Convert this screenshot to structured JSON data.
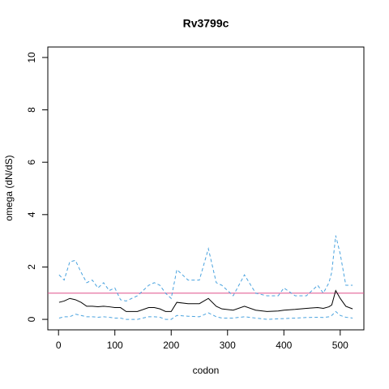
{
  "chart_data": {
    "type": "line",
    "title": "Rv3799c",
    "x_label": "codon",
    "y_label": "omega (dN/dS)",
    "x": [
      1,
      10,
      20,
      30,
      40,
      50,
      60,
      70,
      80,
      90,
      100,
      110,
      120,
      140,
      160,
      170,
      180,
      190,
      200,
      210,
      230,
      250,
      266,
      280,
      290,
      310,
      330,
      350,
      370,
      390,
      400,
      420,
      440,
      460,
      470,
      480,
      485,
      492,
      500,
      510,
      522
    ],
    "series": [
      {
        "color": "#4aa3df",
        "dashed": true,
        "values": [
          1.7,
          1.5,
          2.2,
          2.25,
          1.8,
          1.4,
          1.5,
          1.2,
          1.4,
          1.1,
          1.2,
          0.75,
          0.7,
          0.9,
          1.3,
          1.4,
          1.3,
          1.0,
          0.8,
          1.9,
          1.5,
          1.5,
          2.7,
          1.4,
          1.3,
          0.9,
          1.7,
          1.0,
          0.9,
          0.9,
          1.2,
          0.9,
          0.9,
          1.3,
          1.0,
          1.4,
          1.8,
          3.2,
          2.5,
          1.3,
          1.3
        ]
      },
      {
        "color": "#000000",
        "dashed": false,
        "values": [
          0.65,
          0.7,
          0.8,
          0.75,
          0.65,
          0.5,
          0.5,
          0.48,
          0.5,
          0.48,
          0.45,
          0.45,
          0.3,
          0.3,
          0.45,
          0.45,
          0.4,
          0.3,
          0.3,
          0.65,
          0.6,
          0.6,
          0.8,
          0.5,
          0.4,
          0.35,
          0.5,
          0.35,
          0.3,
          0.32,
          0.35,
          0.38,
          0.42,
          0.45,
          0.42,
          0.48,
          0.55,
          1.1,
          0.8,
          0.5,
          0.4
        ]
      },
      {
        "color": "#4aa3df",
        "dashed": true,
        "values": [
          0.05,
          0.1,
          0.1,
          0.2,
          0.15,
          0.1,
          0.1,
          0.08,
          0.1,
          0.08,
          0.05,
          0.05,
          0.0,
          0.0,
          0.1,
          0.1,
          0.08,
          0.0,
          0.0,
          0.15,
          0.12,
          0.1,
          0.25,
          0.1,
          0.05,
          0.05,
          0.1,
          0.05,
          0.0,
          0.02,
          0.03,
          0.05,
          0.07,
          0.08,
          0.07,
          0.1,
          0.15,
          0.3,
          0.15,
          0.08,
          0.05
        ]
      }
    ],
    "hline": {
      "value": 1,
      "color": "#e0508c"
    },
    "xlim": [
      -19,
      542
    ],
    "ylim": [
      -0.4,
      10.4
    ],
    "xticks": [
      0,
      100,
      200,
      300,
      400,
      500
    ],
    "yticks": [
      0,
      2,
      4,
      6,
      8,
      10
    ]
  }
}
